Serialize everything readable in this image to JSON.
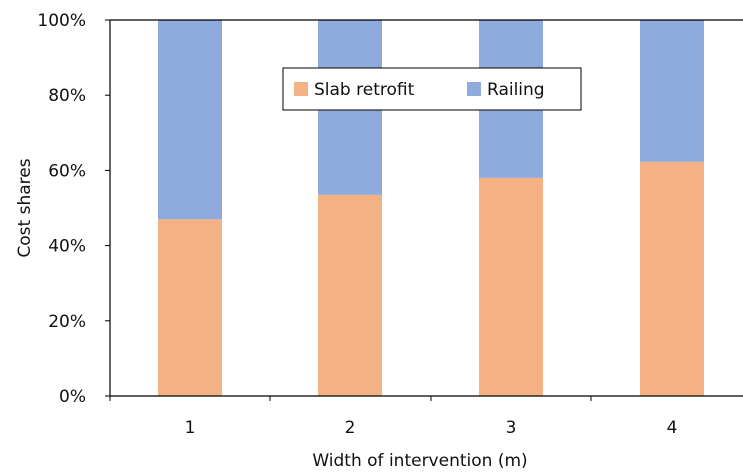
{
  "chart_data": {
    "type": "bar",
    "stacked": true,
    "categories": [
      "1",
      "2",
      "3",
      "4"
    ],
    "series": [
      {
        "name": "Slab retrofit",
        "values": [
          47,
          53.5,
          58,
          62.3
        ],
        "color": "#F4B183"
      },
      {
        "name": "Railing",
        "values": [
          53,
          46.5,
          42,
          37.7
        ],
        "color": "#8FAADC"
      }
    ],
    "xlabel": "Width of intervention (m)",
    "ylabel": "Cost shares",
    "ylim": [
      0,
      100
    ],
    "yticks": [
      0,
      20,
      40,
      60,
      80,
      100
    ],
    "ytick_labels": [
      "0%",
      "20%",
      "40%",
      "60%",
      "80%",
      "100%"
    ],
    "grid": false,
    "legend_position": "top-center"
  }
}
